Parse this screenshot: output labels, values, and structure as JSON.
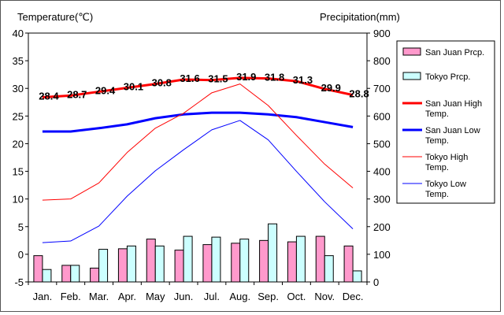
{
  "chart_data": {
    "type": "bar-line-combo",
    "left_axis_title": "Temperature(℃)",
    "right_axis_title": "Precipitation(mm)",
    "categories": [
      "Jan.",
      "Feb.",
      "Mar.",
      "Apr.",
      "May",
      "Jun.",
      "Jul.",
      "Aug.",
      "Sep.",
      "Oct.",
      "Nov.",
      "Dec."
    ],
    "left_axis": {
      "min": -5,
      "max": 40,
      "step": 5
    },
    "right_axis": {
      "min": 0,
      "max": 900,
      "step": 100
    },
    "bar_series": [
      {
        "name": "San Juan Prcp.",
        "color": "#ff99cc",
        "values": [
          95,
          60,
          50,
          120,
          155,
          115,
          135,
          140,
          150,
          145,
          165,
          130
        ]
      },
      {
        "name": "Tokyo Prcp.",
        "color": "#ccffff",
        "values": [
          45,
          60,
          118,
          130,
          130,
          165,
          162,
          155,
          210,
          165,
          95,
          40
        ]
      }
    ],
    "line_series": [
      {
        "name": "San Juan High Temp.",
        "color": "#ff0000",
        "width": 3,
        "values": [
          28.4,
          28.7,
          29.4,
          30.1,
          30.8,
          31.6,
          31.5,
          31.9,
          31.8,
          31.3,
          29.9,
          28.8
        ]
      },
      {
        "name": "San Juan Low Temp.",
        "color": "#0000ff",
        "width": 3,
        "values": [
          22.2,
          22.2,
          22.8,
          23.5,
          24.6,
          25.3,
          25.6,
          25.6,
          25.3,
          24.8,
          23.9,
          23.0
        ]
      },
      {
        "name": "Tokyo High Temp.",
        "color": "#ff0000",
        "width": 1,
        "values": [
          9.8,
          10.0,
          12.9,
          18.4,
          22.8,
          25.5,
          29.2,
          30.8,
          26.9,
          21.5,
          16.3,
          12.0
        ]
      },
      {
        "name": "Tokyo Low Temp.",
        "color": "#0000ff",
        "width": 1,
        "values": [
          2.1,
          2.4,
          5.1,
          10.5,
          15.1,
          18.9,
          22.5,
          24.2,
          20.7,
          15.0,
          9.5,
          4.6
        ]
      }
    ],
    "data_labels": {
      "series": "San Juan High Temp.",
      "values": [
        "28.4",
        "28.7",
        "29.4",
        "30.1",
        "30.8",
        "31.6",
        "31.5",
        "31.9",
        "31.8",
        "31.3",
        "29.9",
        "28.8"
      ]
    },
    "legend": {
      "position": "right",
      "entries": [
        {
          "label_lines": [
            "San Juan Prcp."
          ],
          "kind": "bar",
          "color": "#ff99cc"
        },
        {
          "label_lines": [
            "Tokyo Prcp."
          ],
          "kind": "bar",
          "color": "#ccffff"
        },
        {
          "label_lines": [
            "San Juan High",
            "Temp."
          ],
          "kind": "line",
          "color": "#ff0000",
          "width": 3
        },
        {
          "label_lines": [
            "San Juan Low",
            "Temp."
          ],
          "kind": "line",
          "color": "#0000ff",
          "width": 3
        },
        {
          "label_lines": [
            "Tokyo High",
            "Temp."
          ],
          "kind": "line",
          "color": "#ff0000",
          "width": 1
        },
        {
          "label_lines": [
            "Tokyo Low",
            "Temp."
          ],
          "kind": "line",
          "color": "#0000ff",
          "width": 1
        }
      ]
    },
    "grid": false
  }
}
